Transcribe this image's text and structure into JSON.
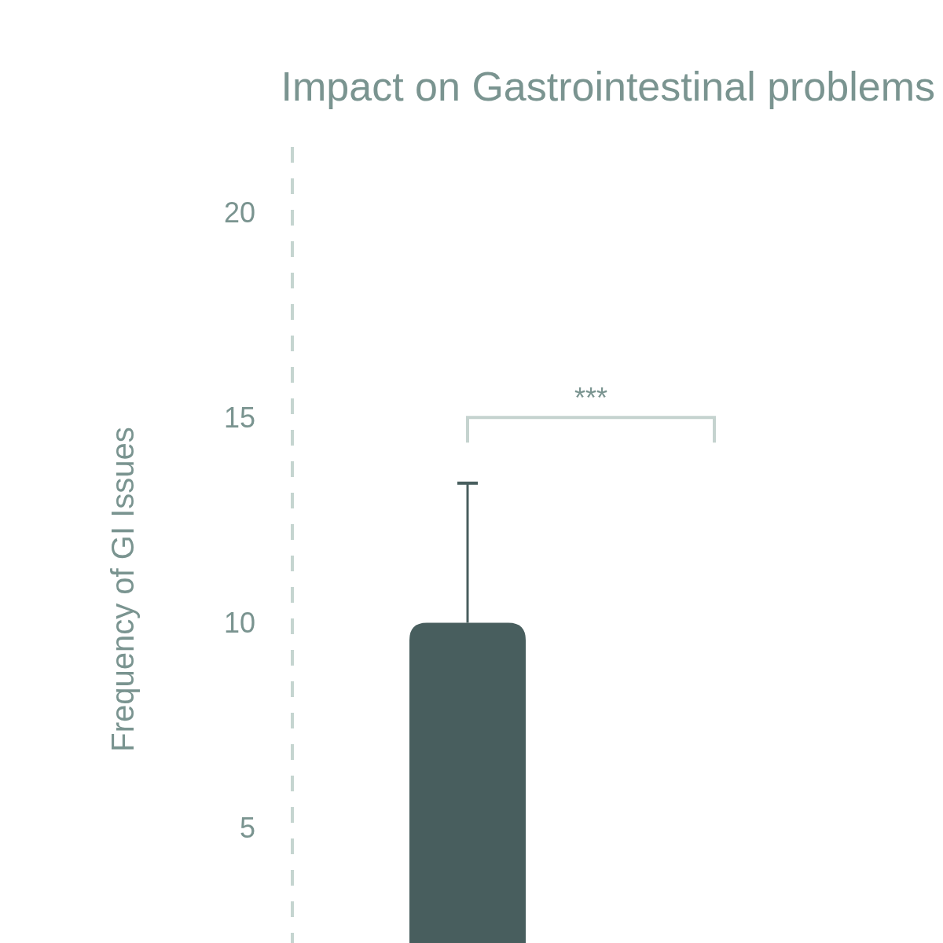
{
  "chart_data": {
    "type": "bar",
    "title": "Impact on Gastrointestinal problems",
    "ylabel": "Frequency of GI Issues",
    "categories": [
      null
    ],
    "values": [
      10
    ],
    "errors": [
      3.4
    ],
    "color": "#485e5e",
    "ylim": [
      2.2,
      20
    ],
    "yticks": [
      5,
      10,
      15,
      20
    ],
    "annotations": [
      "***"
    ]
  }
}
